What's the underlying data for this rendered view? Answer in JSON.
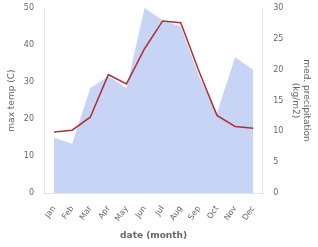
{
  "chart_data": {
    "type": "line",
    "categories": [
      "Jan",
      "Feb",
      "Mar",
      "Apr",
      "May",
      "Jun",
      "Jul",
      "Aug",
      "Sep",
      "Oct",
      "Nov",
      "Dec"
    ],
    "series": [
      {
        "type": "area",
        "color": "#c8d4f5",
        "axis": "y2",
        "values": [
          9,
          8,
          17,
          19,
          17,
          30,
          28,
          27,
          19,
          13,
          22,
          20
        ]
      },
      {
        "type": "line",
        "color": "#b03030",
        "values": [
          16.5,
          17.0,
          20.5,
          32.0,
          29.5,
          39.0,
          46.5,
          46.0,
          33.0,
          21.0,
          18.0,
          17.5
        ]
      }
    ],
    "xlabel": "date (month)",
    "ylabel": "max temp (C)",
    "y2label": "med. precipitation\n(kg/m2)",
    "ylim": [
      0,
      50
    ],
    "yticks": [
      0,
      10,
      20,
      30,
      40,
      50
    ],
    "y2lim": [
      0,
      30
    ],
    "y2ticks": [
      0,
      5,
      10,
      15,
      20,
      25,
      30
    ],
    "grid": false
  }
}
